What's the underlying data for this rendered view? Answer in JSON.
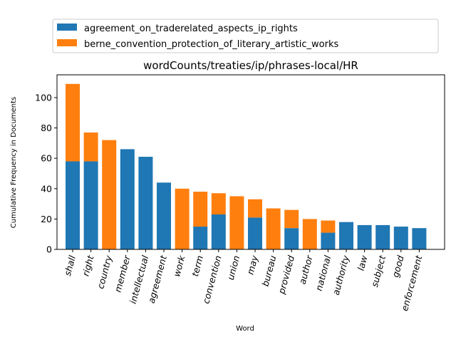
{
  "chart_data": {
    "type": "bar",
    "stacked": true,
    "title": "wordCounts/treaties/ip/phrases-local/HR",
    "xlabel": "Word",
    "ylabel": "Cumulative Frequency in Documents",
    "ylim": [
      0,
      115
    ],
    "yticks": [
      0,
      20,
      40,
      60,
      80,
      100
    ],
    "grid": false,
    "legend_position": "top (above plot)",
    "categories": [
      "shall",
      "right",
      "country",
      "member",
      "intellectual",
      "agreement",
      "work",
      "term",
      "convention",
      "union",
      "may",
      "bureau",
      "provided",
      "author",
      "national",
      "authority",
      "law",
      "subject",
      "good",
      "enforcement"
    ],
    "series": [
      {
        "name": "agreement_on_traderelated_aspects_ip_rights",
        "color": "#1f77b4",
        "values": [
          58,
          58,
          0,
          66,
          61,
          44,
          0,
          15,
          23,
          0,
          21,
          0,
          14,
          0,
          11,
          18,
          16,
          16,
          15,
          14
        ]
      },
      {
        "name": "berne_convention_protection_of_literary_artistic_works",
        "color": "#ff7f0e",
        "values": [
          51,
          19,
          72,
          0,
          0,
          0,
          40,
          23,
          14,
          35,
          12,
          27,
          12,
          20,
          8,
          0,
          0,
          0,
          0,
          0
        ]
      }
    ]
  }
}
